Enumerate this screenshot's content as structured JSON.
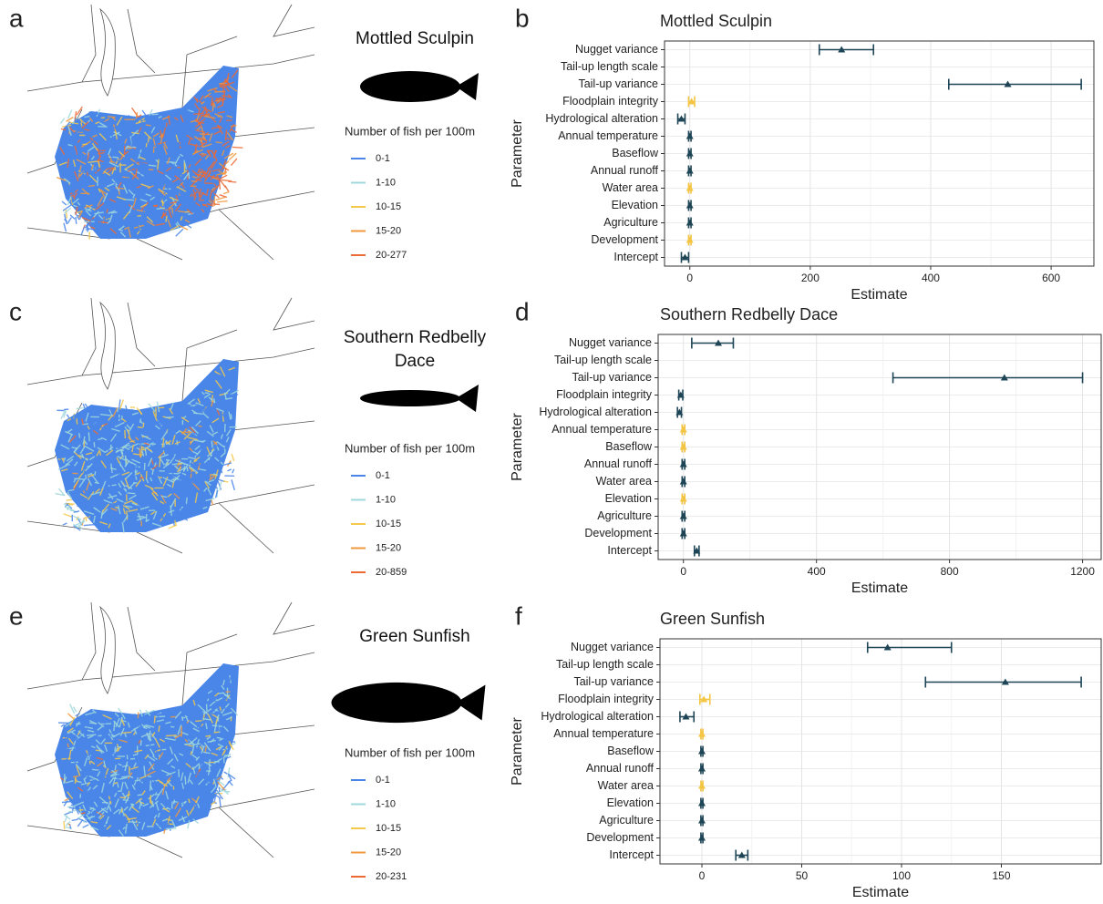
{
  "map_panels": [
    {
      "letter": "a",
      "species": "Mottled Sculpin",
      "legend_title": "Number of fish per 100m",
      "legend": [
        {
          "label": "0-1",
          "color": "#4a86e8"
        },
        {
          "label": "1-10",
          "color": "#9fd8dc"
        },
        {
          "label": "10-15",
          "color": "#f3c84b"
        },
        {
          "label": "15-20",
          "color": "#f0983e"
        },
        {
          "label": "20-277",
          "color": "#ee6a35"
        }
      ]
    },
    {
      "letter": "c",
      "species": "Southern Redbelly Dace",
      "legend_title": "Number of fish per 100m",
      "legend": [
        {
          "label": "0-1",
          "color": "#4a86e8"
        },
        {
          "label": "1-10",
          "color": "#9fd8dc"
        },
        {
          "label": "10-15",
          "color": "#f3c84b"
        },
        {
          "label": "15-20",
          "color": "#f0983e"
        },
        {
          "label": "20-859",
          "color": "#ee6a35"
        }
      ]
    },
    {
      "letter": "e",
      "species": "Green Sunfish",
      "legend_title": "Number of fish per 100m",
      "legend": [
        {
          "label": "0-1",
          "color": "#4a86e8"
        },
        {
          "label": "1-10",
          "color": "#9fd8dc"
        },
        {
          "label": "10-15",
          "color": "#f3c84b"
        },
        {
          "label": "15-20",
          "color": "#f0983e"
        },
        {
          "label": "20-231",
          "color": "#ee6a35"
        }
      ]
    }
  ],
  "chart_data": [
    {
      "type": "forest",
      "letter": "b",
      "title": "Mottled Sculpin",
      "x_label": "Estimate",
      "y_label": "Parameter",
      "categories": [
        "Nugget variance",
        "Tail-up length scale",
        "Tail-up variance",
        "Floodplain integrity",
        "Hydrological alteration",
        "Annual temperature",
        "Baseflow",
        "Annual runoff",
        "Water area",
        "Elevation",
        "Agriculture",
        "Development",
        "Intercept"
      ],
      "values": [
        252,
        null,
        528,
        3,
        -14,
        0,
        0,
        0,
        0,
        0,
        0,
        0,
        -8
      ],
      "lower": [
        215,
        null,
        430,
        -2,
        -20,
        -2,
        -2,
        -2,
        -2,
        -2,
        -2,
        -2,
        -14
      ],
      "upper": [
        305,
        null,
        650,
        8,
        -8,
        2,
        2,
        2,
        2,
        2,
        2,
        2,
        -2
      ],
      "colors": [
        "#1d4556",
        "#1d4556",
        "#1d4556",
        "#f4c542",
        "#1d4556",
        "#1d4556",
        "#1d4556",
        "#1d4556",
        "#f4c542",
        "#1d4556",
        "#1d4556",
        "#f4c542",
        "#1d4556"
      ],
      "xlim": [
        -42,
        671
      ],
      "xticks": [
        0,
        200,
        400,
        600
      ],
      "grid": true
    },
    {
      "type": "forest",
      "letter": "d",
      "title": "Southern Redbelly Dace",
      "x_label": "Estimate",
      "y_label": "Parameter",
      "categories": [
        "Nugget variance",
        "Tail-up length scale",
        "Tail-up variance",
        "Floodplain integrity",
        "Hydrological alteration",
        "Annual temperature",
        "Baseflow",
        "Annual runoff",
        "Water area",
        "Elevation",
        "Agriculture",
        "Development",
        "Intercept"
      ],
      "values": [
        105,
        null,
        965,
        -8,
        -12,
        0,
        0,
        0,
        0,
        0,
        0,
        0,
        40
      ],
      "lower": [
        25,
        null,
        630,
        -14,
        -18,
        -4,
        -4,
        -4,
        -4,
        -4,
        -4,
        -4,
        33
      ],
      "upper": [
        150,
        null,
        1200,
        -2,
        -6,
        4,
        4,
        4,
        4,
        4,
        4,
        4,
        47
      ],
      "colors": [
        "#1d4556",
        "#1d4556",
        "#1d4556",
        "#1d4556",
        "#1d4556",
        "#f4c542",
        "#f4c542",
        "#1d4556",
        "#1d4556",
        "#f4c542",
        "#1d4556",
        "#1d4556",
        "#1d4556"
      ],
      "xlim": [
        -76,
        1256
      ],
      "xticks": [
        0,
        400,
        800,
        1200
      ],
      "grid": true
    },
    {
      "type": "forest",
      "letter": "f",
      "title": "Green Sunfish",
      "x_label": "Estimate",
      "y_label": "Parameter",
      "categories": [
        "Nugget variance",
        "Tail-up length scale",
        "Tail-up variance",
        "Floodplain integrity",
        "Hydrological alteration",
        "Annual temperature",
        "Baseflow",
        "Annual runoff",
        "Water area",
        "Elevation",
        "Agriculture",
        "Development",
        "Intercept"
      ],
      "values": [
        93,
        null,
        152,
        1,
        -8,
        0,
        0,
        0,
        0,
        0,
        0,
        0,
        20
      ],
      "lower": [
        83,
        null,
        112,
        -1,
        -11,
        -0.5,
        -0.5,
        -0.5,
        -0.5,
        -0.5,
        -0.5,
        -0.5,
        17
      ],
      "upper": [
        125,
        null,
        190,
        4,
        -4,
        0.5,
        0.5,
        0.5,
        0.5,
        0.5,
        0.5,
        0.5,
        23
      ],
      "colors": [
        "#1d4556",
        "#1d4556",
        "#1d4556",
        "#f4c542",
        "#1d4556",
        "#f4c542",
        "#1d4556",
        "#1d4556",
        "#f4c542",
        "#1d4556",
        "#1d4556",
        "#1d4556",
        "#1d4556"
      ],
      "xlim": [
        -21,
        200
      ],
      "xticks": [
        0,
        50,
        100,
        150
      ],
      "grid": true
    }
  ]
}
